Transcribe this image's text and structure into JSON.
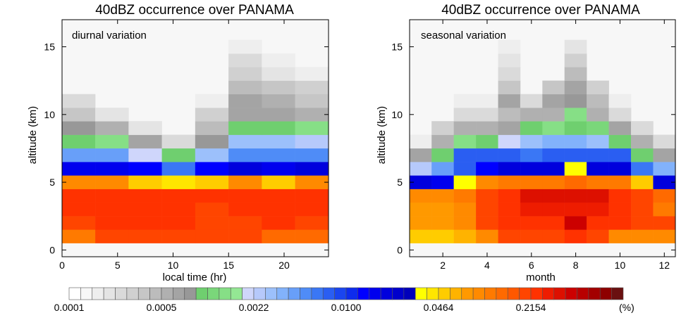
{
  "figure": {
    "colorbar": {
      "colors": [
        "#ffffff",
        "#f7f7f7",
        "#eeeeee",
        "#e4e4e4",
        "#dadada",
        "#d0d0d0",
        "#c6c6c6",
        "#bcbcbc",
        "#b0b0b0",
        "#a4a4a4",
        "#989898",
        "#6fcf6f",
        "#7ad77a",
        "#86df86",
        "#94e794",
        "#cfd6fb",
        "#b6c9fb",
        "#9cc0fb",
        "#82b2fb",
        "#689ff9",
        "#4f8cf7",
        "#3a77f5",
        "#2a5ef2",
        "#1a45ef",
        "#0d2ced",
        "#0000ff",
        "#0000ee",
        "#0000dd",
        "#0000cc",
        "#0000bb",
        "#ffff00",
        "#ffe600",
        "#ffcc00",
        "#ffb300",
        "#ff9900",
        "#ff8a00",
        "#ff7a00",
        "#ff6a00",
        "#ff5800",
        "#ff4500",
        "#ff3200",
        "#ee1c00",
        "#dd1000",
        "#cc0000",
        "#b80000",
        "#a30000",
        "#8e0000",
        "#6a1010"
      ],
      "tick_labels": [
        "0.0001",
        "0.0005",
        "0.0022",
        "0.0100",
        "0.0464",
        "0.2154"
      ],
      "unit": "(%)"
    }
  },
  "chart_data": [
    {
      "type": "heatmap",
      "title": "40dBZ occurrence over PANAMA",
      "annotation": "diurnal variation",
      "xlabel": "local time (hr)",
      "ylabel": "altitude (km)",
      "xlim": [
        0,
        24
      ],
      "ylim": [
        -0.5,
        17
      ],
      "x_ticks": [
        "0",
        "5",
        "10",
        "15",
        "20"
      ],
      "y_ticks": [
        "0",
        "5",
        "10",
        "15"
      ],
      "x": [
        1.5,
        4.5,
        7.5,
        10.5,
        13.5,
        16.5,
        19.5,
        22.5
      ],
      "altitude_km": [
        1,
        2,
        3,
        4,
        5,
        6,
        7,
        8,
        9,
        10,
        11,
        12,
        13,
        14,
        15
      ],
      "cell_colors": [
        [
          "#ff7a00",
          "#ff4500",
          "#ff4500",
          "#ff4500",
          "#ff4500",
          "#ff4500",
          "#ff6a00",
          "#ff6a00"
        ],
        [
          "#ff4500",
          "#ff3200",
          "#ff3200",
          "#ff3200",
          "#ff4500",
          "#ff4500",
          "#ff3200",
          "#ff4500"
        ],
        [
          "#ff3200",
          "#ff3200",
          "#ff3200",
          "#ff3200",
          "#ff4500",
          "#ff3200",
          "#ff3200",
          "#ff3200"
        ],
        [
          "#ff3200",
          "#ff3200",
          "#ff3200",
          "#ff3200",
          "#ff3200",
          "#ff3200",
          "#ff3200",
          "#ff3200"
        ],
        [
          "#ff8a00",
          "#ff8a00",
          "#ffcc00",
          "#ffe600",
          "#ffcc00",
          "#ff8a00",
          "#ffcc00",
          "#ff8a00"
        ],
        [
          "#0000ee",
          "#0000ee",
          "#0000ff",
          "#3a77f5",
          "#0000ff",
          "#0000dd",
          "#0000ee",
          "#0000dd"
        ],
        [
          "#689ff9",
          "#689ff9",
          "#cfd6fb",
          "#6fcf6f",
          "#9cc0fb",
          "#4f8cf7",
          "#4f8cf7",
          "#4f8cf7"
        ],
        [
          "#6fcf6f",
          "#86df86",
          "#a4a4a4",
          "#dadada",
          "#989898",
          "#9cc0fb",
          "#9cc0fb",
          "#b6c9fb"
        ],
        [
          "#989898",
          "#b0b0b0",
          "#e4e4e4",
          null,
          "#bcbcbc",
          "#6fcf6f",
          "#6fcf6f",
          "#86df86"
        ],
        [
          "#c6c6c6",
          "#e4e4e4",
          null,
          null,
          "#d0d0d0",
          "#a4a4a4",
          "#a4a4a4",
          "#b0b0b0"
        ],
        [
          "#dadada",
          null,
          null,
          null,
          "#eeeeee",
          "#a4a4a4",
          "#b0b0b0",
          "#c6c6c6"
        ],
        [
          null,
          null,
          null,
          null,
          null,
          "#bcbcbc",
          "#c6c6c6",
          "#d0d0d0"
        ],
        [
          null,
          null,
          null,
          null,
          null,
          "#d0d0d0",
          "#e4e4e4",
          "#eeeeee"
        ],
        [
          null,
          null,
          null,
          null,
          null,
          "#dadada",
          "#eeeeee",
          null
        ],
        [
          null,
          null,
          null,
          null,
          null,
          "#eeeeee",
          null,
          null
        ]
      ],
      "background_color": "#f7f7f7"
    },
    {
      "type": "heatmap",
      "title": "40dBZ occurrence over PANAMA",
      "annotation": "seasonal variation",
      "xlabel": "month",
      "ylabel": "altitude (km)",
      "xlim": [
        0.5,
        12.5
      ],
      "ylim": [
        -0.5,
        17
      ],
      "x_ticks": [
        "2",
        "4",
        "6",
        "8",
        "10",
        "12"
      ],
      "y_ticks": [
        "0",
        "5",
        "10",
        "15"
      ],
      "x": [
        1,
        2,
        3,
        4,
        5,
        6,
        7,
        8,
        9,
        10,
        11,
        12
      ],
      "altitude_km": [
        1,
        2,
        3,
        4,
        5,
        6,
        7,
        8,
        9,
        10,
        11,
        12,
        13,
        14,
        15
      ],
      "cell_colors": [
        [
          "#ffcc00",
          "#ffcc00",
          "#ffb300",
          "#ff8a00",
          "#ff4500",
          "#ff4500",
          "#ff4500",
          "#ff3200",
          "#ff4500",
          "#ff8a00",
          "#ff8a00",
          "#ff8a00"
        ],
        [
          "#ff9900",
          "#ff9900",
          "#ff8a00",
          "#ff4500",
          "#ff3200",
          "#ff3200",
          "#ff3200",
          "#cc0000",
          "#ff3200",
          "#ff3200",
          "#ff4500",
          "#ff4500"
        ],
        [
          "#ff9900",
          "#ff9900",
          "#ff8a00",
          "#ff4500",
          "#ff3200",
          "#ee1c00",
          "#ee1c00",
          "#ee1c00",
          "#ee1c00",
          "#ff3200",
          "#ff4500",
          "#ff7a00"
        ],
        [
          "#ff8a00",
          "#ff8a00",
          "#ff7a00",
          "#ff4500",
          "#ff3200",
          "#dd1000",
          "#dd1000",
          "#dd1000",
          "#dd1000",
          "#ff3200",
          "#ff4500",
          "#ff6a00"
        ],
        [
          "#0000dd",
          "#0000ee",
          "#ffff00",
          "#ff8a00",
          "#ff7a00",
          "#ff7a00",
          "#ff7a00",
          "#ff6a00",
          "#ff7a00",
          "#ff7a00",
          "#ffcc00",
          "#0000dd"
        ],
        [
          "#b6c9fb",
          "#689ff9",
          "#2a5ef2",
          "#0000ff",
          "#0000dd",
          "#0000dd",
          "#0000dd",
          "#ffff00",
          "#0000dd",
          "#0000dd",
          "#3a77f5",
          "#82b2fb"
        ],
        [
          "#a4a4a4",
          "#6fcf6f",
          "#2a5ef2",
          "#2a5ef2",
          "#2a5ef2",
          "#3a77f5",
          "#2a5ef2",
          "#2a5ef2",
          "#2a5ef2",
          "#2a5ef2",
          "#6fcf6f",
          "#a4a4a4"
        ],
        [
          "#eeeeee",
          "#b0b0b0",
          "#86df86",
          "#6fcf6f",
          "#cfd6fb",
          "#9cc0fb",
          "#82b2fb",
          "#82b2fb",
          "#9cc0fb",
          "#6fcf6f",
          "#b0b0b0",
          "#dadada"
        ],
        [
          null,
          "#d0d0d0",
          "#b0b0b0",
          "#b0b0b0",
          "#a4a4a4",
          "#6fcf6f",
          "#86df86",
          "#6fcf6f",
          "#7ad77a",
          "#a4a4a4",
          "#dadada",
          null
        ],
        [
          null,
          null,
          "#dadada",
          "#dadada",
          "#bcbcbc",
          "#b0b0b0",
          "#b0b0b0",
          "#86df86",
          "#b0b0b0",
          "#dadada",
          null,
          null
        ],
        [
          null,
          null,
          "#eeeeee",
          "#eeeeee",
          "#a4a4a4",
          "#dadada",
          "#a4a4a4",
          "#989898",
          "#bcbcbc",
          "#eeeeee",
          null,
          null
        ],
        [
          null,
          null,
          null,
          null,
          "#c6c6c6",
          null,
          "#c6c6c6",
          "#a4a4a4",
          "#d0d0d0",
          null,
          null,
          null
        ],
        [
          null,
          null,
          null,
          null,
          "#dadada",
          null,
          null,
          "#bcbcbc",
          null,
          null,
          null,
          null
        ],
        [
          null,
          null,
          null,
          null,
          "#e4e4e4",
          null,
          null,
          "#d0d0d0",
          null,
          null,
          null,
          null
        ],
        [
          null,
          null,
          null,
          null,
          "#eeeeee",
          null,
          null,
          "#e4e4e4",
          null,
          null,
          null,
          null
        ]
      ],
      "background_color": "#f7f7f7"
    }
  ]
}
